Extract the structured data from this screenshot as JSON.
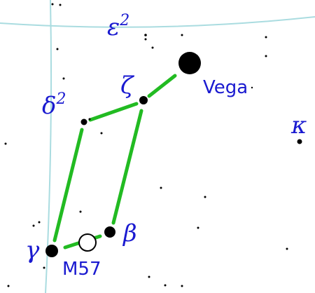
{
  "labels": {
    "epsilon2": {
      "text": "ε",
      "sup": "2"
    },
    "zeta": {
      "text": "ζ"
    },
    "vega": {
      "text": "Vega"
    },
    "delta2": {
      "text": "δ",
      "sup": "2"
    },
    "kappa": {
      "text": "κ"
    },
    "beta": {
      "text": "β"
    },
    "gamma": {
      "text": "γ"
    },
    "m57": {
      "text": "M57"
    }
  }
}
